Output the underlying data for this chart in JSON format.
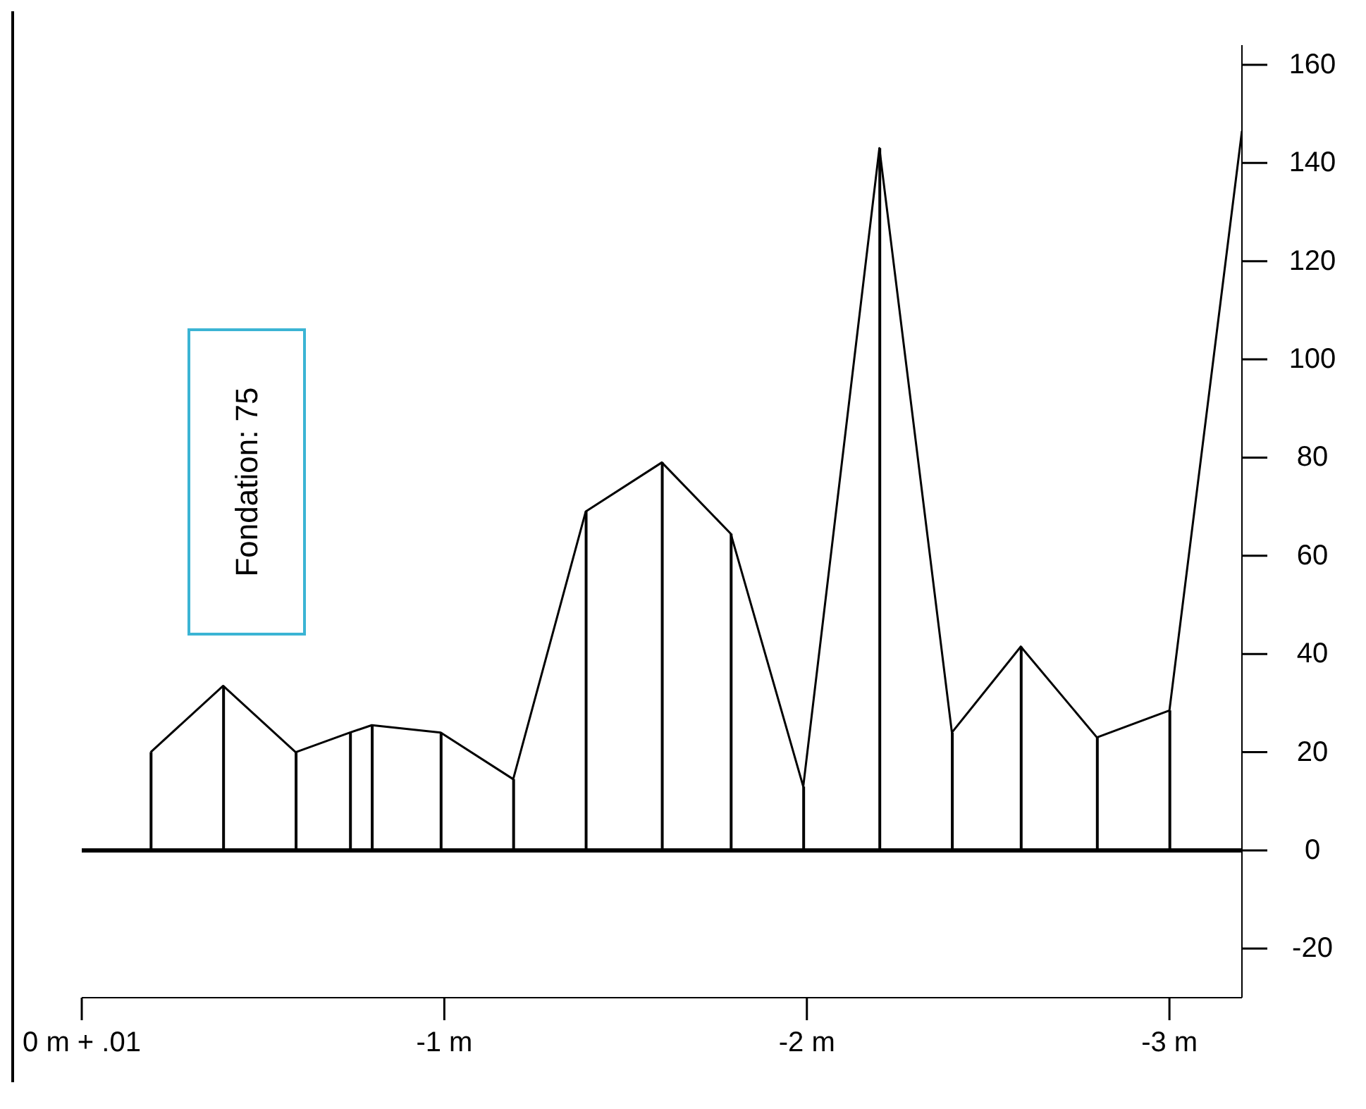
{
  "chart_data": {
    "type": "line",
    "x": [
      -0.19,
      -0.39,
      -0.59,
      -0.74,
      -0.8,
      -0.99,
      -1.19,
      -1.39,
      -1.6,
      -1.79,
      -1.99,
      -2.2,
      -2.4,
      -2.59,
      -2.8,
      -3.0,
      -3.2
    ],
    "series": [
      {
        "color": "#000000",
        "values": [
          20,
          33.5,
          20,
          24,
          25.5,
          24,
          14.5,
          69,
          79,
          64.5,
          13,
          143,
          24,
          41.5,
          23,
          28.5,
          146.5
        ]
      },
      {
        "type": "bar",
        "color": "#000000",
        "values": [
          20,
          33.5,
          20,
          24,
          25.5,
          24,
          14.5,
          69,
          79,
          64.5,
          13,
          143,
          24,
          41.5,
          23,
          28.5,
          null
        ]
      }
    ],
    "xlim": [
      0,
      -3.2
    ],
    "xticks": [
      {
        "value": 0,
        "label": "0 m + .01"
      },
      {
        "value": -1,
        "label": "-1 m"
      },
      {
        "value": -2,
        "label": "-2 m"
      },
      {
        "value": -3,
        "label": "-3 m"
      }
    ],
    "ylim": [
      -30,
      164
    ],
    "yticks": [
      -20,
      0,
      20,
      40,
      60,
      80,
      100,
      120,
      140,
      160
    ],
    "ref_lines": [
      {
        "axis": "y",
        "value": 0,
        "color": "#000000"
      }
    ],
    "annotations": [
      "Fondation: 75"
    ],
    "marker": "none",
    "legend": false
  }
}
